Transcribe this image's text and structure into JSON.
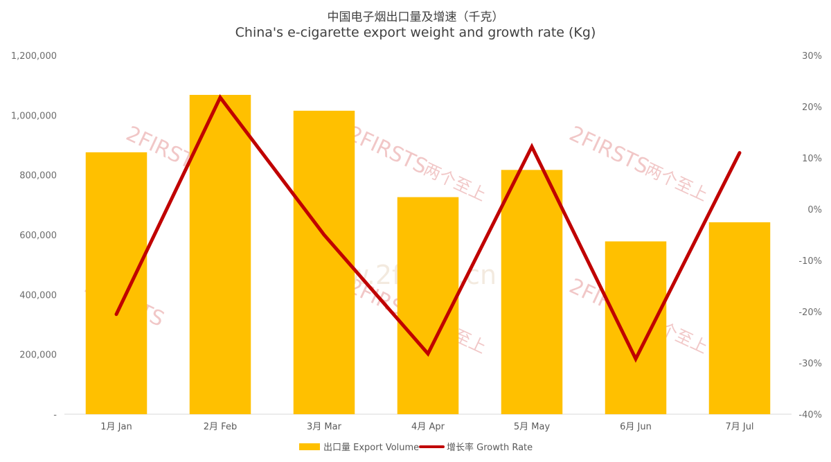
{
  "title": "中国电子烟出口量及增速（千克）",
  "subtitle": "China's e-cigarette export weight and growth rate (Kg)",
  "watermark": {
    "brand": "2FIRSTS",
    "brand_cn": "两个至上",
    "url": "www.2firsts.cn"
  },
  "colors": {
    "bar": "#FFC000",
    "line": "#C00000",
    "axis": "#D9D9D9"
  },
  "chart_data": {
    "type": "bar",
    "categories": [
      "1月 Jan",
      "2月 Feb",
      "3月 Mar",
      "4月 Apr",
      "5月 May",
      "6月 Jun",
      "7月 Jul"
    ],
    "series": [
      {
        "name": "出口量 Export Volume",
        "type": "bar",
        "axis": "left",
        "values": [
          876000,
          1068000,
          1015000,
          726000,
          817000,
          578000,
          642000
        ]
      },
      {
        "name": "增长率 Growth Rate",
        "type": "line",
        "axis": "right",
        "values": [
          -20.5,
          21.8,
          -5.0,
          -28.2,
          12.2,
          -29.2,
          11.0
        ]
      }
    ],
    "y_left": {
      "lim": [
        0,
        1200000
      ],
      "ticks": [
        "-",
        "200,000",
        "400,000",
        "600,000",
        "800,000",
        "1,000,000",
        "1,200,000"
      ]
    },
    "y_right": {
      "lim": [
        -40,
        30
      ],
      "ticks": [
        "-40%",
        "-30%",
        "-20%",
        "-10%",
        "0%",
        "10%",
        "20%",
        "30%"
      ]
    },
    "grid": false,
    "legend": "bottom"
  }
}
